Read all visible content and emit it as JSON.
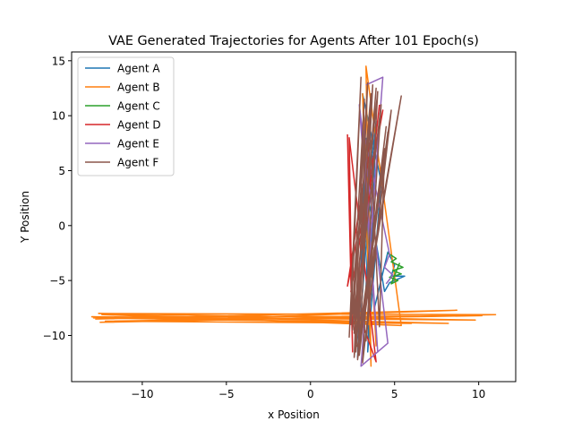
{
  "chart_data": {
    "type": "line",
    "title": "VAE Generated Trajectories for Agents After 101 Epoch(s)",
    "xlabel": "x Position",
    "ylabel": "Y Position",
    "xlim": [
      -14.2,
      12.2
    ],
    "ylim": [
      -14.2,
      15.8
    ],
    "xticks": [
      -10,
      -5,
      0,
      5,
      10
    ],
    "yticks": [
      -10,
      -5,
      0,
      5,
      10,
      15
    ],
    "grid": false,
    "legend_position": "top-left",
    "series": [
      {
        "name": "Agent A",
        "color": "#1f77b4",
        "x": [
          3.2,
          3.6,
          3.0,
          3.9,
          3.4,
          4.2,
          3.1,
          3.8,
          4.6,
          5.0,
          4.8,
          5.6,
          4.7,
          4.4,
          3.5,
          2.8,
          3.3
        ],
        "y": [
          -9.8,
          6.5,
          -3.0,
          9.5,
          -11.5,
          4.0,
          12.0,
          -7.5,
          -2.4,
          -3.6,
          -4.6,
          -4.6,
          -5.2,
          -6.0,
          2.0,
          -12.0,
          8.0
        ]
      },
      {
        "name": "Agent B",
        "color": "#ff7f0e",
        "x": [
          -12.8,
          8.7,
          -12.5,
          11.0,
          -12.6,
          9.8,
          -13.0,
          6.0,
          -12.2,
          10.2,
          -12.9,
          8.2,
          -12.4,
          5.4,
          3.3,
          3.6,
          3.1,
          3.9
        ],
        "y": [
          -8.5,
          -7.7,
          -8.8,
          -8.1,
          -8.0,
          -8.6,
          -8.3,
          -8.9,
          -8.7,
          -8.2,
          -8.4,
          -8.9,
          -8.1,
          -9.1,
          14.5,
          -12.8,
          12.0,
          -11.0
        ],
        "path_order": "y_then_x_swaps"
      },
      {
        "name": "Agent C",
        "color": "#2ca02c",
        "x": [
          4.6,
          5.1,
          4.8,
          5.5,
          4.9,
          5.4,
          4.7,
          5.2,
          4.8,
          5.3
        ],
        "y": [
          -2.5,
          -3.0,
          -3.3,
          -3.8,
          -4.1,
          -4.4,
          -4.7,
          -5.0,
          -5.3,
          -3.4
        ]
      },
      {
        "name": "Agent D",
        "color": "#d62728",
        "x": [
          2.2,
          2.5,
          2.3,
          3.9,
          2.4,
          4.3,
          2.2,
          3.5,
          2.6,
          4.1
        ],
        "y": [
          8.3,
          -11.5,
          8.0,
          -12.4,
          -6.0,
          10.5,
          -5.5,
          7.5,
          -9.5,
          11.0
        ]
      },
      {
        "name": "Agent E",
        "color": "#9467bd",
        "x": [
          3.3,
          4.3,
          3.0,
          4.6,
          2.9,
          4.0,
          3.1,
          4.7,
          4.4,
          4.9,
          4.5
        ],
        "y": [
          12.8,
          13.5,
          -12.8,
          -10.7,
          11.0,
          -11.5,
          9.0,
          -2.6,
          -3.8,
          -4.5,
          -5.3
        ]
      },
      {
        "name": "Agent F",
        "color": "#8c564b",
        "x": [
          2.3,
          3.0,
          2.4,
          3.6,
          2.5,
          3.2,
          2.6,
          3.9,
          2.7,
          3.4,
          2.5,
          4.0,
          3.1,
          4.8,
          2.8,
          5.4,
          3.0,
          4.5,
          2.9,
          3.7,
          2.6,
          4.2,
          3.3,
          4.6,
          2.8,
          3.5,
          4.1,
          4.4,
          3.2,
          3.8
        ],
        "y": [
          -10.2,
          13.5,
          -9.0,
          12.0,
          -8.0,
          11.5,
          -12.0,
          12.5,
          -11.5,
          13.0,
          -9.5,
          12.2,
          -12.5,
          10.5,
          -11.0,
          11.8,
          -10.0,
          9.0,
          -11.8,
          12.8,
          -9.8,
          11.0,
          -10.5,
          8.5,
          -12.2,
          10.0,
          -9.2,
          7.0,
          -8.5,
          -2.0
        ]
      }
    ]
  }
}
